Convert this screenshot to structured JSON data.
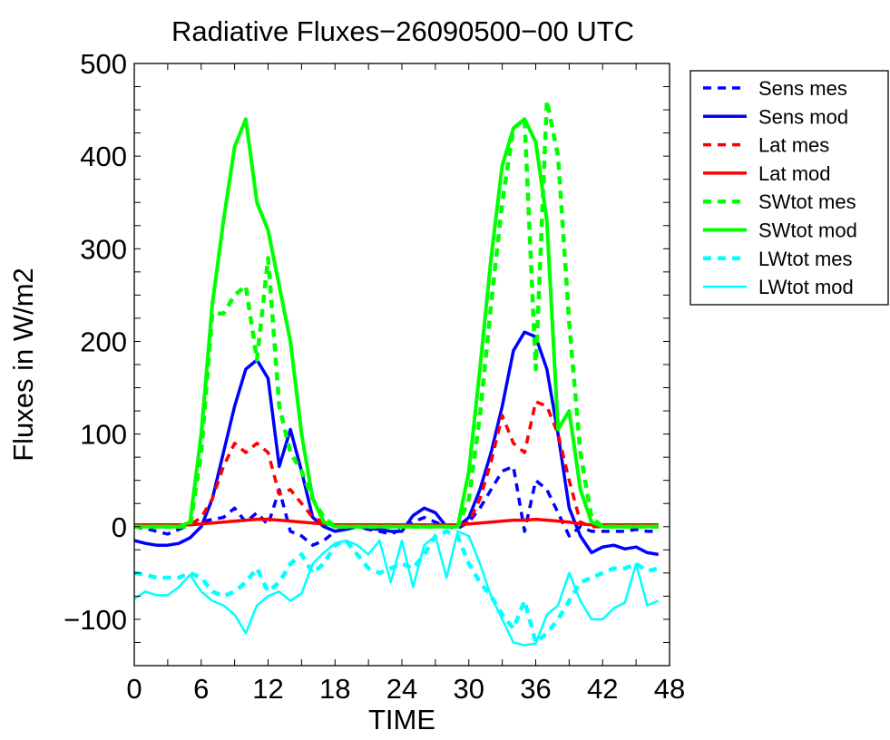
{
  "chart_data": {
    "type": "line",
    "title": "Radiative Fluxes−26090500−00 UTC",
    "xlabel": "TIME",
    "ylabel": "Fluxes in W/m2",
    "xlim": [
      0,
      48
    ],
    "ylim": [
      -150,
      500
    ],
    "x_ticks": [
      0,
      6,
      12,
      18,
      24,
      30,
      36,
      42,
      48
    ],
    "x_tick_labels": [
      "0",
      "6",
      "12",
      "18",
      "24",
      "30",
      "36",
      "42",
      "48"
    ],
    "y_ticks": [
      -100,
      0,
      100,
      200,
      300,
      400,
      500
    ],
    "y_tick_labels": [
      "−100",
      "0",
      "100",
      "200",
      "300",
      "400",
      "500"
    ],
    "grid": false,
    "legend_position": "outside-top-right",
    "x": [
      0,
      1,
      2,
      3,
      4,
      5,
      6,
      7,
      8,
      9,
      10,
      11,
      12,
      13,
      14,
      15,
      16,
      17,
      18,
      19,
      20,
      21,
      22,
      23,
      24,
      25,
      26,
      27,
      28,
      29,
      30,
      31,
      32,
      33,
      34,
      35,
      36,
      37,
      38,
      39,
      40,
      41,
      42,
      43,
      44,
      45,
      46,
      47
    ],
    "series": [
      {
        "name": "Sens mes",
        "color": "#0000ff",
        "style": "dashed",
        "width": 3.5,
        "values": [
          0,
          -2,
          -5,
          -8,
          -3,
          2,
          5,
          8,
          10,
          20,
          5,
          15,
          2,
          40,
          -5,
          -10,
          -20,
          -15,
          -5,
          -2,
          0,
          -3,
          -5,
          -8,
          -3,
          5,
          10,
          5,
          0,
          -2,
          5,
          20,
          40,
          60,
          65,
          -5,
          50,
          40,
          15,
          -10,
          0,
          -5,
          -5,
          -5,
          -5,
          -3,
          -5,
          -5
        ]
      },
      {
        "name": "Sens mod",
        "color": "#0000ff",
        "style": "solid",
        "width": 3.5,
        "values": [
          -15,
          -18,
          -20,
          -20,
          -18,
          -12,
          0,
          30,
          80,
          130,
          170,
          180,
          160,
          65,
          105,
          60,
          10,
          0,
          -5,
          -3,
          0,
          -2,
          -3,
          -5,
          -5,
          12,
          20,
          15,
          0,
          0,
          10,
          40,
          80,
          130,
          190,
          210,
          205,
          170,
          100,
          20,
          -10,
          -28,
          -22,
          -20,
          -24,
          -22,
          -28,
          -30
        ]
      },
      {
        "name": "Lat mes",
        "color": "#ff0000",
        "style": "dashed",
        "width": 3.5,
        "values": [
          0,
          0,
          0,
          0,
          0,
          2,
          10,
          30,
          65,
          90,
          80,
          90,
          80,
          35,
          40,
          25,
          10,
          5,
          2,
          0,
          0,
          0,
          0,
          0,
          0,
          0,
          0,
          0,
          0,
          0,
          5,
          30,
          70,
          120,
          90,
          80,
          135,
          130,
          100,
          50,
          5,
          0,
          0,
          0,
          0,
          0,
          0,
          0
        ]
      },
      {
        "name": "Lat mod",
        "color": "#ff0000",
        "style": "solid",
        "width": 3.5,
        "values": [
          2,
          2,
          2,
          2,
          2,
          2,
          3,
          4,
          5,
          6,
          7,
          8,
          8,
          7,
          6,
          5,
          4,
          3,
          2,
          2,
          2,
          2,
          2,
          2,
          2,
          2,
          2,
          2,
          2,
          2,
          3,
          4,
          5,
          6,
          7,
          7,
          8,
          7,
          6,
          5,
          3,
          2,
          2,
          2,
          2,
          2,
          2,
          2
        ]
      },
      {
        "name": "SWtot mes",
        "color": "#00ff00",
        "style": "dashed",
        "width": 4.5,
        "values": [
          0,
          0,
          0,
          0,
          0,
          0,
          80,
          230,
          230,
          250,
          260,
          180,
          290,
          130,
          80,
          60,
          30,
          10,
          0,
          0,
          0,
          0,
          0,
          0,
          0,
          0,
          0,
          0,
          0,
          0,
          30,
          120,
          240,
          350,
          430,
          440,
          170,
          460,
          400,
          220,
          80,
          10,
          0,
          0,
          0,
          0,
          0,
          0
        ]
      },
      {
        "name": "SWtot mod",
        "color": "#00ff00",
        "style": "solid",
        "width": 4,
        "values": [
          0,
          0,
          0,
          0,
          0,
          5,
          100,
          240,
          330,
          410,
          440,
          350,
          320,
          260,
          200,
          100,
          30,
          5,
          0,
          0,
          0,
          0,
          0,
          0,
          0,
          0,
          0,
          0,
          0,
          0,
          60,
          170,
          290,
          390,
          430,
          440,
          415,
          330,
          105,
          125,
          40,
          5,
          0,
          0,
          0,
          0,
          0,
          0
        ]
      },
      {
        "name": "LWtot mes",
        "color": "#00ffff",
        "style": "dashed",
        "width": 4.5,
        "values": [
          -50,
          -52,
          -55,
          -55,
          -55,
          -50,
          -55,
          -70,
          -75,
          -70,
          -60,
          -45,
          -70,
          -60,
          -40,
          -30,
          -50,
          -40,
          -20,
          -15,
          -30,
          -45,
          -50,
          -45,
          -40,
          -45,
          -30,
          -10,
          -5,
          -10,
          -40,
          -60,
          -75,
          -95,
          -110,
          -80,
          -125,
          -115,
          -100,
          -80,
          -60,
          -55,
          -50,
          -45,
          -45,
          -40,
          -48,
          -45
        ]
      },
      {
        "name": "LWtot mod",
        "color": "#00ffff",
        "style": "solid",
        "width": 2.5,
        "values": [
          -78,
          -70,
          -74,
          -74,
          -65,
          -52,
          -70,
          -80,
          -85,
          -95,
          -115,
          -85,
          -75,
          -70,
          -80,
          -72,
          -40,
          -28,
          -18,
          -15,
          -20,
          -30,
          -15,
          -60,
          -15,
          -65,
          -20,
          -10,
          -55,
          -5,
          -10,
          -40,
          -75,
          -100,
          -125,
          -128,
          -126,
          -95,
          -85,
          -50,
          -80,
          -100,
          -100,
          -88,
          -82,
          -40,
          -85,
          -80
        ]
      }
    ]
  }
}
